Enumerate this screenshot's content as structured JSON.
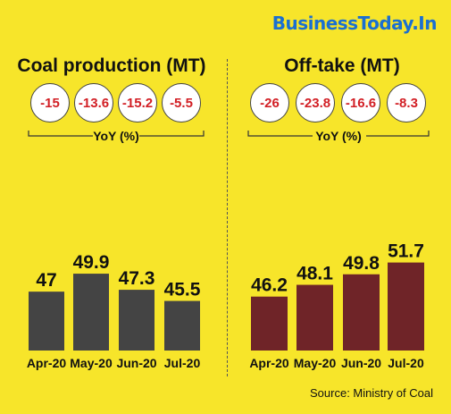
{
  "brand": "BusinessToday.In",
  "source": "Source: Ministry of Coal",
  "colors": {
    "background": "#f7e52a",
    "coal_bar": "#444444",
    "offtake_bar": "#6f2428",
    "yoy_text": "#d21f25",
    "brand": "#1a6fd1"
  },
  "chart_data": [
    {
      "type": "bar",
      "title": "Coal production (MT)",
      "categories": [
        "Apr-20",
        "May-20",
        "Jun-20",
        "Jul-20"
      ],
      "values": [
        47,
        49.9,
        47.3,
        45.5
      ],
      "yoy_label": "YoY (%)",
      "yoy": [
        -15,
        -13.6,
        -15.2,
        -5.5
      ]
    },
    {
      "type": "bar",
      "title": "Off-take (MT)",
      "categories": [
        "Apr-20",
        "May-20",
        "Jun-20",
        "Jul-20"
      ],
      "values": [
        46.2,
        48.1,
        49.8,
        51.7
      ],
      "yoy_label": "YoY (%)",
      "yoy": [
        -26,
        -23.8,
        -16.6,
        -8.3
      ]
    }
  ]
}
